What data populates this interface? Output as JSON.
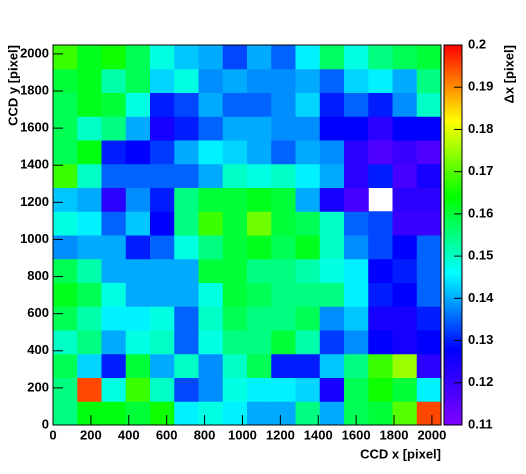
{
  "chart_data": {
    "type": "heatmap",
    "xlabel": "CCD x [pixel]",
    "ylabel": "CCD y [pixel]",
    "zlabel": "Δx [pixel]",
    "xbins": [
      0,
      128,
      256,
      384,
      512,
      640,
      768,
      896,
      1024,
      1152,
      1280,
      1408,
      1536,
      1664,
      1792,
      1920,
      2048
    ],
    "ybins": [
      0,
      128,
      256,
      384,
      512,
      640,
      768,
      896,
      1024,
      1152,
      1280,
      1408,
      1536,
      1664,
      1792,
      1920,
      2048
    ],
    "values": [
      [
        0.155,
        0.163,
        0.163,
        0.16,
        0.165,
        0.145,
        0.148,
        0.145,
        0.14,
        0.14,
        0.155,
        0.14,
        0.158,
        0.16,
        0.17,
        0.195
      ],
      [
        0.155,
        0.195,
        0.148,
        0.168,
        0.15,
        0.133,
        0.138,
        0.148,
        0.145,
        0.145,
        0.143,
        0.125,
        0.158,
        0.165,
        0.16,
        0.145
      ],
      [
        0.158,
        0.143,
        0.13,
        0.16,
        0.14,
        0.15,
        0.138,
        0.15,
        0.158,
        0.13,
        0.13,
        0.142,
        0.155,
        0.168,
        0.175,
        0.122
      ],
      [
        0.15,
        0.155,
        0.14,
        0.148,
        0.15,
        0.135,
        0.148,
        0.155,
        0.155,
        0.16,
        0.152,
        0.132,
        0.138,
        0.128,
        0.125,
        0.128
      ],
      [
        0.158,
        0.152,
        0.145,
        0.145,
        0.148,
        0.135,
        0.15,
        0.158,
        0.155,
        0.155,
        0.158,
        0.138,
        0.142,
        0.125,
        0.125,
        0.13
      ],
      [
        0.162,
        0.158,
        0.148,
        0.14,
        0.14,
        0.14,
        0.148,
        0.16,
        0.158,
        0.155,
        0.155,
        0.155,
        0.145,
        0.13,
        0.128,
        0.135
      ],
      [
        0.158,
        0.152,
        0.14,
        0.14,
        0.14,
        0.14,
        0.16,
        0.16,
        0.155,
        0.155,
        0.152,
        0.148,
        0.145,
        0.128,
        0.13,
        0.135
      ],
      [
        0.138,
        0.14,
        0.14,
        0.13,
        0.135,
        0.148,
        0.155,
        0.16,
        0.162,
        0.158,
        0.162,
        0.15,
        0.138,
        0.133,
        0.128,
        0.135
      ],
      [
        0.148,
        0.145,
        0.135,
        0.142,
        0.128,
        0.155,
        0.168,
        0.16,
        0.172,
        0.16,
        0.158,
        0.15,
        0.135,
        0.133,
        0.12,
        0.12
      ],
      [
        0.142,
        0.14,
        0.122,
        0.138,
        0.13,
        0.155,
        0.16,
        0.16,
        0.162,
        0.16,
        0.14,
        0.125,
        0.118,
        null,
        0.122,
        0.122
      ],
      [
        0.168,
        0.15,
        0.135,
        0.135,
        0.135,
        0.135,
        0.14,
        0.15,
        0.148,
        0.15,
        0.145,
        0.14,
        0.122,
        0.13,
        0.118,
        0.125
      ],
      [
        0.158,
        0.163,
        0.13,
        0.128,
        0.132,
        0.14,
        0.145,
        0.143,
        0.14,
        0.135,
        0.14,
        0.138,
        0.122,
        0.117,
        0.12,
        0.117
      ],
      [
        0.158,
        0.15,
        0.155,
        0.14,
        0.125,
        0.13,
        0.135,
        0.14,
        0.14,
        0.138,
        0.138,
        0.128,
        0.128,
        0.122,
        0.128,
        0.128
      ],
      [
        0.158,
        0.162,
        0.16,
        0.148,
        0.13,
        0.133,
        0.14,
        0.135,
        0.135,
        0.138,
        0.143,
        0.13,
        0.135,
        0.13,
        0.138,
        0.15
      ],
      [
        0.16,
        0.162,
        0.152,
        0.158,
        0.143,
        0.148,
        0.138,
        0.14,
        0.138,
        0.138,
        0.14,
        0.135,
        0.143,
        0.145,
        0.14,
        0.155
      ],
      [
        0.168,
        0.162,
        0.165,
        0.158,
        0.148,
        0.142,
        0.14,
        0.133,
        0.14,
        0.135,
        0.145,
        0.157,
        0.148,
        0.155,
        0.158,
        0.16
      ]
    ],
    "xlim": [
      0,
      2048
    ],
    "ylim": [
      0,
      2048
    ],
    "xticks": [
      0,
      200,
      400,
      600,
      800,
      1000,
      1200,
      1400,
      1600,
      1800,
      2000
    ],
    "yticks": [
      0,
      200,
      400,
      600,
      800,
      1000,
      1200,
      1400,
      1600,
      1800,
      2000
    ],
    "zlim": [
      0.11,
      0.2
    ],
    "zticks": [
      0.11,
      0.12,
      0.13,
      0.14,
      0.15,
      0.16,
      0.17,
      0.18,
      0.19,
      0.2
    ],
    "colormap": [
      "#8000ff",
      "#0000ff",
      "#00ffff",
      "#00ff00",
      "#ffff00",
      "#ff0000"
    ]
  }
}
